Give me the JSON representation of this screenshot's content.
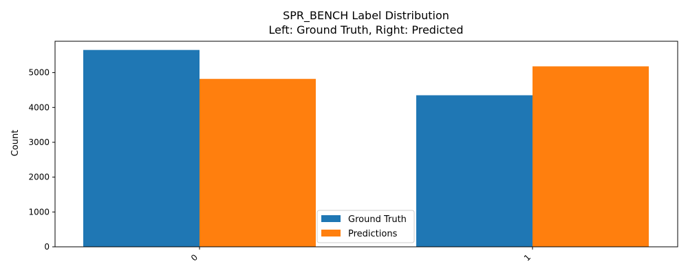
{
  "chart_data": {
    "type": "bar",
    "title_line1": "SPR_BENCH Label Distribution",
    "title_line2": "Left: Ground Truth, Right: Predicted",
    "categories": [
      "0",
      "1"
    ],
    "series": [
      {
        "name": "Ground Truth",
        "values": [
          5650,
          4350
        ],
        "color": "#1f77b4"
      },
      {
        "name": "Predictions",
        "values": [
          4820,
          5180
        ],
        "color": "#ff7f0e"
      }
    ],
    "xlabel": "",
    "ylabel": "Count",
    "ylim": [
      0,
      5900
    ],
    "yticks": [
      0,
      1000,
      2000,
      3000,
      4000,
      5000
    ],
    "ytick_labels": [
      "0",
      "1000",
      "2000",
      "3000",
      "4000",
      "5000"
    ],
    "grid": false,
    "legend_position": "lower center"
  }
}
